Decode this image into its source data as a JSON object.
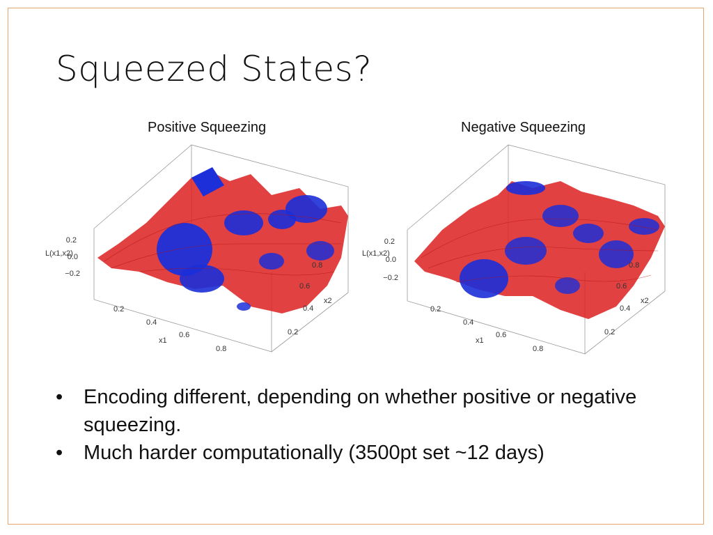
{
  "slide": {
    "title": "Squeezed States?",
    "captions": {
      "left": "Positive Squeezing",
      "right": "Negative Squeezing"
    },
    "bullets": [
      "Encoding different, depending on whether positive or negative squeezing.",
      "Much harder computationally (3500pt set ~12 days)"
    ],
    "bullet_symbol": "•"
  },
  "plots": {
    "z_axis_label": "L(x1,x2)",
    "x1_label": "x1",
    "x2_label": "x2",
    "z_ticks": [
      "0.2",
      "0.0",
      "−0.2"
    ],
    "x1_ticks": [
      "0.2",
      "0.4",
      "0.6",
      "0.8"
    ],
    "x2_ticks": [
      "0.2",
      "0.4",
      "0.6",
      "0.8"
    ],
    "colors": {
      "positive": "#dd2020",
      "negative": "#1c2fd8",
      "frame": "#999999",
      "border": "#e8a66c"
    }
  }
}
